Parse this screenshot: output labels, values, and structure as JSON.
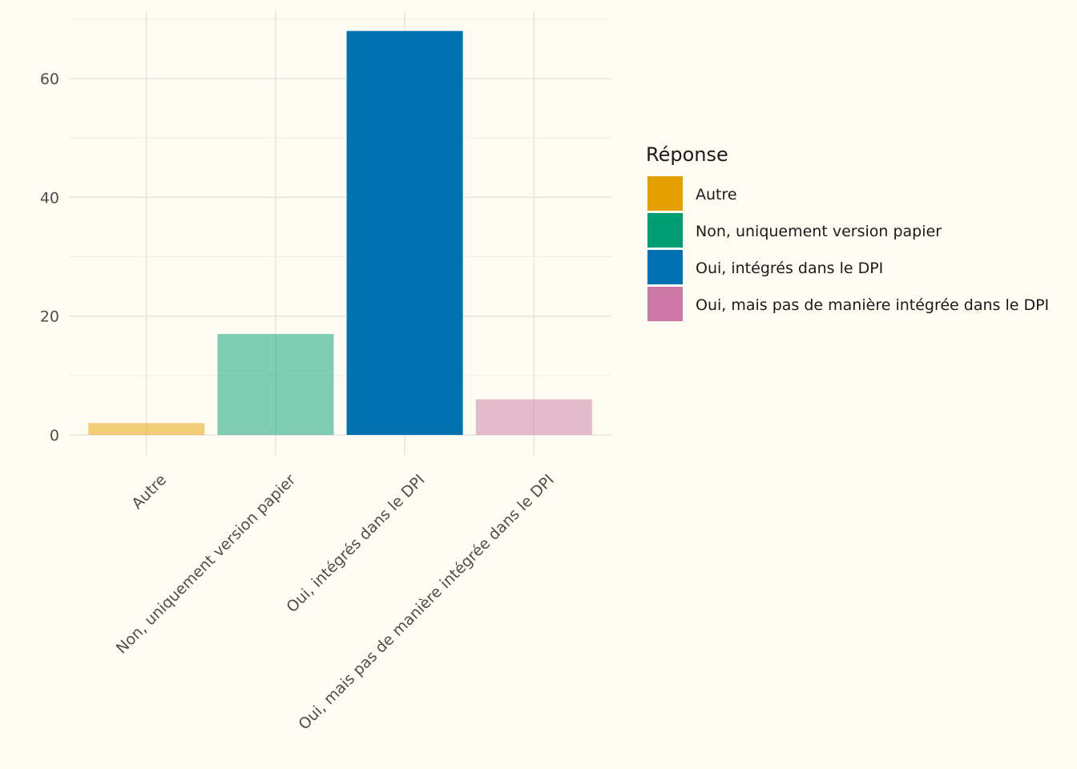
{
  "chart_data": {
    "type": "bar",
    "title": "",
    "xlabel": "",
    "ylabel": "",
    "categories": [
      "Autre",
      "Non, uniquement version papier",
      "Oui, intégrés dans le DPI",
      "Oui, mais pas de manière intégrée dans le DPI"
    ],
    "values": [
      2,
      17,
      68,
      6
    ],
    "colors": [
      "#e69f00",
      "#009e73",
      "#0072b2",
      "#cc79a7"
    ],
    "opacity": [
      0.5,
      0.5,
      1.0,
      0.5
    ],
    "ylim": [
      0,
      71
    ],
    "yticks": [
      0,
      20,
      40,
      60
    ],
    "grid": true,
    "legend": {
      "title": "Réponse",
      "position": "right",
      "entries": [
        "Autre",
        "Non, uniquement version papier",
        "Oui, intégrés dans le DPI",
        "Oui, mais pas de manière intégrée dans le DPI"
      ]
    }
  }
}
